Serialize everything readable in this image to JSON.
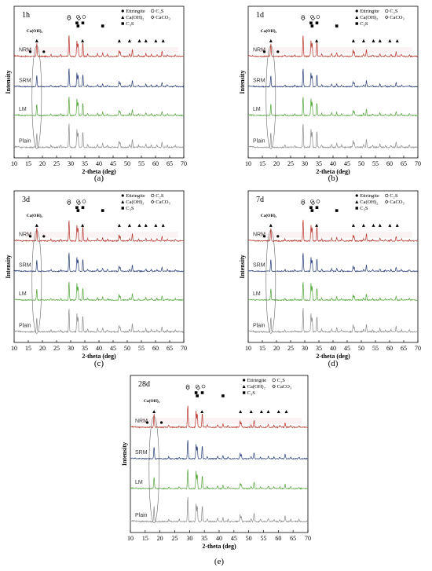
{
  "chart_data": [
    {
      "type": "line",
      "panel_label": "(a)",
      "age": "1h",
      "xlabel": "2-theta (deg)",
      "ylabel": "Intensity",
      "xlim": [
        10,
        70
      ],
      "xticks": [
        10,
        15,
        20,
        25,
        30,
        35,
        40,
        45,
        50,
        55,
        60,
        65,
        70
      ],
      "annotation": "Ca(OH)₂",
      "legend": {
        "col1": [
          "Ettringite",
          "Ca(OH)₂",
          "C₃S"
        ],
        "col2": [
          "C₂S",
          "CaCO₃"
        ]
      },
      "series": [
        {
          "name": "NRM",
          "color": "#b5372d"
        },
        {
          "name": "SRM",
          "color": "#2a3f78"
        },
        {
          "name": "LM",
          "color": "#52a43a"
        },
        {
          "name": "Plain",
          "color": "#8c8c8c"
        }
      ]
    },
    {
      "type": "line",
      "panel_label": "(b)",
      "age": "1d",
      "xlabel": "2-theta (deg)",
      "ylabel": "Intensity",
      "xlim": [
        10,
        70
      ],
      "xticks": [
        10,
        15,
        20,
        25,
        30,
        35,
        40,
        45,
        50,
        55,
        60,
        65,
        70
      ],
      "annotation": "Ca(OH)₂",
      "legend": {
        "col1": [
          "Ettringite",
          "Ca(OH)₂",
          "C₃S"
        ],
        "col2": [
          "C₂S",
          "CaCO₃"
        ]
      },
      "series": [
        {
          "name": "NRM",
          "color": "#b5372d"
        },
        {
          "name": "SRM",
          "color": "#2a3f78"
        },
        {
          "name": "LM",
          "color": "#52a43a"
        },
        {
          "name": "Plain",
          "color": "#8c8c8c"
        }
      ]
    },
    {
      "type": "line",
      "panel_label": "(c)",
      "age": "3d",
      "xlabel": "2-theta (deg)",
      "ylabel": "Intensity",
      "xlim": [
        10,
        70
      ],
      "xticks": [
        10,
        15,
        20,
        25,
        30,
        35,
        40,
        45,
        50,
        55,
        60,
        65,
        70
      ],
      "annotation": "Ca(OH)₂",
      "legend": {
        "col1": [
          "Ettringite",
          "Ca(OH)₂",
          "C₃S"
        ],
        "col2": [
          "C₂S",
          "CaCO₃"
        ]
      },
      "series": [
        {
          "name": "NRM",
          "color": "#b5372d"
        },
        {
          "name": "SRM",
          "color": "#2a3f78"
        },
        {
          "name": "LM",
          "color": "#52a43a"
        },
        {
          "name": "Plain",
          "color": "#8c8c8c"
        }
      ]
    },
    {
      "type": "line",
      "panel_label": "(d)",
      "age": "7d",
      "xlabel": "2-theta (deg)",
      "ylabel": "Intensity",
      "xlim": [
        10,
        70
      ],
      "xticks": [
        10,
        15,
        20,
        25,
        30,
        35,
        40,
        45,
        50,
        55,
        60,
        65,
        70
      ],
      "annotation": "Ca(OH)₂",
      "legend": {
        "col1": [
          "Ettringite",
          "Ca(OH)₂",
          "C₃S"
        ],
        "col2": [
          "C₂S",
          "CaCO₃"
        ]
      },
      "series": [
        {
          "name": "NRM",
          "color": "#b5372d"
        },
        {
          "name": "SRM",
          "color": "#2a3f78"
        },
        {
          "name": "LM",
          "color": "#52a43a"
        },
        {
          "name": "Plain",
          "color": "#8c8c8c"
        }
      ]
    },
    {
      "type": "line",
      "panel_label": "(e)",
      "age": "28d",
      "xlabel": "2-theta (deg)",
      "ylabel": "Intensity",
      "xlim": [
        10,
        70
      ],
      "xticks": [
        10,
        15,
        20,
        25,
        30,
        35,
        40,
        45,
        50,
        55,
        60,
        65,
        70
      ],
      "annotation": "Ca(OH)₂",
      "legend": {
        "col1": [
          "Ettringite",
          "Ca(OH)₂",
          "C₃S"
        ],
        "col2": [
          "C₂S",
          "CaCO₃"
        ]
      },
      "series": [
        {
          "name": "NRM",
          "color": "#b5372d"
        },
        {
          "name": "SRM",
          "color": "#2a3f78"
        },
        {
          "name": "LM",
          "color": "#52a43a"
        },
        {
          "name": "Plain",
          "color": "#8c8c8c"
        }
      ]
    }
  ],
  "peaks": {
    "base": [
      [
        18.0,
        0.55
      ],
      [
        29.4,
        0.9
      ],
      [
        32.2,
        0.65
      ],
      [
        32.6,
        0.55
      ],
      [
        34.3,
        0.6
      ],
      [
        39.5,
        0.12
      ],
      [
        41.3,
        0.15
      ],
      [
        47.1,
        0.25
      ],
      [
        47.5,
        0.18
      ],
      [
        50.8,
        0.1
      ],
      [
        51.8,
        0.3
      ],
      [
        56.6,
        0.12
      ],
      [
        62.3,
        0.2
      ],
      [
        64.2,
        0.08
      ]
    ],
    "extra": [
      [
        23.0,
        0.08
      ],
      [
        26.5,
        0.07
      ],
      [
        36.0,
        0.1
      ],
      [
        43.0,
        0.08
      ],
      [
        54.0,
        0.07
      ],
      [
        58.5,
        0.07
      ],
      [
        60.5,
        0.08
      ],
      [
        67.0,
        0.07
      ]
    ]
  },
  "markers": {
    "ettringite": [
      15.7,
      20.5
    ],
    "caoh2": [
      18.0,
      34.2,
      47.2,
      50.8,
      54.3,
      56.6,
      60.1,
      62.7
    ],
    "c3s": [
      32.2,
      32.6,
      34.3,
      41.3
    ],
    "c2s": [
      29.4,
      32.6,
      34.7
    ],
    "caco3": [
      29.4,
      32.9
    ]
  }
}
